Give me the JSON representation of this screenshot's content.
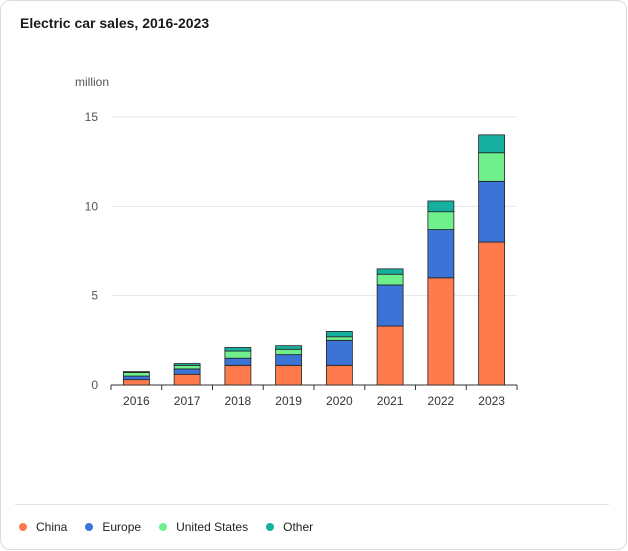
{
  "header": {
    "title": "Electric car sales, 2016-2023",
    "unit": "million"
  },
  "chart_data": {
    "type": "bar",
    "stacked": true,
    "title": "Electric car sales, 2016-2023",
    "ylabel": "million",
    "xlabel": "",
    "ylim": [
      0,
      15
    ],
    "yticks": [
      0,
      5,
      10,
      15
    ],
    "grid": true,
    "legend_position": "bottom-left",
    "categories": [
      "2016",
      "2017",
      "2018",
      "2019",
      "2020",
      "2021",
      "2022",
      "2023"
    ],
    "series": [
      {
        "name": "China",
        "color": "#ff7a4d",
        "values": [
          0.3,
          0.6,
          1.1,
          1.1,
          1.1,
          3.3,
          6.0,
          8.0
        ]
      },
      {
        "name": "Europe",
        "color": "#3b74d6",
        "values": [
          0.2,
          0.3,
          0.4,
          0.6,
          1.4,
          2.3,
          2.7,
          3.4
        ]
      },
      {
        "name": "United States",
        "color": "#6ff08d",
        "values": [
          0.2,
          0.2,
          0.4,
          0.3,
          0.2,
          0.6,
          1.0,
          1.6
        ]
      },
      {
        "name": "Other",
        "color": "#17b0a0",
        "values": [
          0.05,
          0.1,
          0.2,
          0.2,
          0.3,
          0.3,
          0.6,
          1.0
        ]
      }
    ]
  }
}
